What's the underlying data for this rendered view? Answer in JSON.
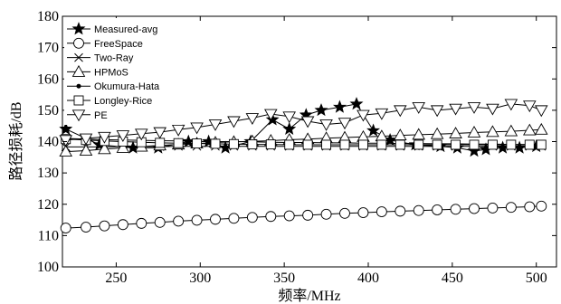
{
  "chart_data": {
    "type": "line",
    "title": "",
    "xlabel": "频率/MHz",
    "ylabel": "路径损耗/dB",
    "xlim": [
      218,
      512
    ],
    "ylim": [
      100,
      180
    ],
    "xticks": [
      250,
      300,
      350,
      400,
      450,
      500
    ],
    "yticks": [
      100,
      110,
      120,
      130,
      140,
      150,
      160,
      170,
      180
    ],
    "grid": false,
    "legend_position": "top-left",
    "series": [
      {
        "name": "Measured-avg",
        "marker": "star",
        "x": [
          220,
          240,
          260,
          275,
          293,
          305,
          315,
          330,
          343,
          353,
          363,
          372,
          383,
          393,
          403,
          413,
          428,
          443,
          453,
          463,
          470,
          480,
          490,
          500
        ],
        "y": [
          144,
          139,
          138,
          138,
          140,
          140,
          138,
          140,
          147,
          144,
          148.5,
          150,
          151,
          152,
          143.5,
          140.5,
          139,
          138.5,
          138,
          137,
          137.5,
          138,
          138,
          138.5
        ]
      },
      {
        "name": "FreeSpace",
        "marker": "circle",
        "x": [
          220,
          232,
          243,
          254,
          265,
          276,
          287,
          298,
          309,
          320,
          331,
          342,
          353,
          364,
          375,
          386,
          397,
          408,
          419,
          430,
          441,
          452,
          463,
          474,
          485,
          496,
          503
        ],
        "y": [
          112.4,
          112.7,
          113.1,
          113.5,
          113.9,
          114.2,
          114.6,
          114.9,
          115.2,
          115.5,
          115.8,
          116.1,
          116.3,
          116.5,
          116.8,
          117.1,
          117.3,
          117.6,
          117.8,
          118.0,
          118.2,
          118.4,
          118.6,
          118.8,
          119.0,
          119.2,
          119.4
        ]
      },
      {
        "name": "Two-Ray",
        "marker": "x",
        "x": [
          220,
          232,
          243,
          254,
          265,
          276,
          287,
          298,
          309,
          320,
          331,
          342,
          353,
          364,
          375,
          386,
          397,
          408,
          419,
          430,
          441,
          452,
          463,
          474,
          485,
          496,
          503
        ],
        "y": [
          138.3,
          138.3,
          138.3,
          138.4,
          138.4,
          138.4,
          138.5,
          138.5,
          138.5,
          138.5,
          138.5,
          138.5,
          138.5,
          138.5,
          138.5,
          138.5,
          138.5,
          138.5,
          138.5,
          138.5,
          138.5,
          138.5,
          138.5,
          138.5,
          138.5,
          138.5,
          138.5
        ]
      },
      {
        "name": "HPMoS",
        "marker": "triangle-up",
        "x": [
          220,
          232,
          243,
          254,
          265,
          276,
          287,
          298,
          309,
          320,
          331,
          342,
          353,
          364,
          375,
          386,
          397,
          408,
          419,
          430,
          441,
          452,
          463,
          474,
          485,
          496,
          503
        ],
        "y": [
          136.8,
          137.1,
          137.6,
          138.0,
          138.4,
          138.8,
          139.1,
          139.4,
          139.7,
          139.9,
          140.1,
          140.3,
          140.6,
          140.8,
          141.1,
          141.3,
          141.5,
          141.7,
          142.0,
          142.2,
          142.4,
          142.6,
          142.9,
          143.1,
          143.3,
          143.6,
          143.8
        ]
      },
      {
        "name": "Okumura-Hata",
        "marker": "dot",
        "x": [
          220,
          232,
          243,
          254,
          265,
          276,
          287,
          298,
          309,
          320,
          331,
          342,
          353,
          364,
          375,
          386,
          397,
          408,
          419,
          430,
          441,
          452,
          463,
          474,
          485,
          496,
          503
        ],
        "y": [
          141.0,
          140.8,
          140.6,
          140.5,
          140.4,
          140.3,
          140.2,
          140.1,
          140.0,
          140.0,
          139.9,
          139.8,
          139.7,
          139.7,
          139.6,
          139.6,
          139.5,
          139.5,
          139.4,
          139.4,
          139.3,
          139.3,
          139.2,
          139.2,
          139.1,
          139.1,
          139.0
        ]
      },
      {
        "name": "Longley-Rice",
        "marker": "square",
        "x": [
          220,
          232,
          243,
          254,
          265,
          276,
          287,
          298,
          309,
          320,
          331,
          342,
          353,
          364,
          375,
          386,
          397,
          408,
          419,
          430,
          441,
          452,
          463,
          474,
          485,
          496,
          503
        ],
        "y": [
          140.8,
          140.5,
          140.2,
          140.0,
          139.8,
          139.6,
          139.5,
          139.4,
          139.3,
          139.2,
          139.1,
          139.1,
          139.0,
          139.0,
          139.0,
          139.0,
          139.0,
          139.0,
          139.0,
          139.0,
          139.0,
          139.0,
          139.0,
          139.0,
          139.0,
          139.0,
          139.0
        ]
      },
      {
        "name": "PE",
        "marker": "triangle-down",
        "x": [
          220,
          232,
          243,
          254,
          265,
          276,
          287,
          298,
          309,
          320,
          331,
          342,
          353,
          364,
          375,
          386,
          397,
          408,
          419,
          430,
          441,
          452,
          463,
          474,
          485,
          496,
          503
        ],
        "y": [
          140.5,
          141.0,
          141.5,
          142.0,
          142.5,
          143.0,
          143.8,
          144.5,
          145.5,
          146.5,
          147.5,
          148.8,
          148.0,
          146.5,
          145.5,
          146.0,
          148.5,
          149.0,
          150.0,
          151.0,
          150.0,
          150.5,
          151.0,
          150.5,
          152.0,
          151.5,
          150.0
        ]
      }
    ]
  }
}
